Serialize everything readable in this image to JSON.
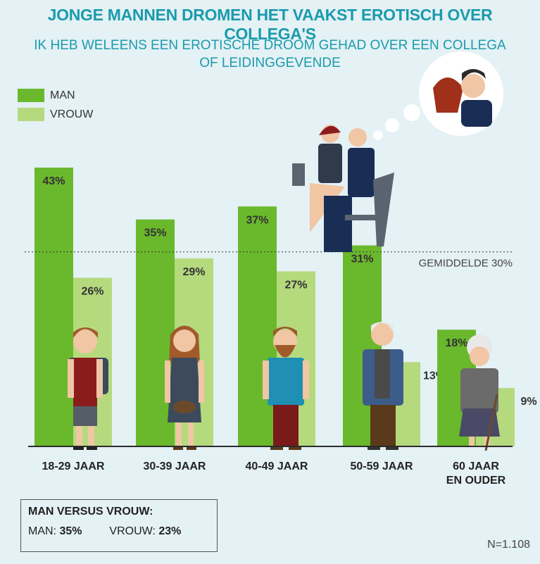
{
  "title": "JONGE MANNEN DROMEN HET VAAKST EROTISCH OVER COLLEGA'S",
  "subtitle_line1": "IK HEB WELEENS EEN EROTISCHE DROOM GEHAD OVER EEN COLLEGA",
  "subtitle_line2": "OF LEIDINGGEVENDE",
  "legend": [
    {
      "label": "MAN",
      "color": "#6ab82c"
    },
    {
      "label": "VROUW",
      "color": "#b5da7e"
    }
  ],
  "summary": {
    "heading": "MAN VERSUS VROUW:",
    "man_label": "MAN:",
    "man_value": "35%",
    "vrouw_label": "VROUW:",
    "vrouw_value": "23%"
  },
  "sample_size": "N=1.108",
  "chart_data": {
    "type": "bar",
    "categories": [
      "18-29 JAAR",
      "30-39 JAAR",
      "40-49 JAAR",
      "50-59 JAAR",
      "60 JAAR\nEN OUDER"
    ],
    "series": [
      {
        "name": "MAN",
        "values": [
          43,
          35,
          37,
          31,
          18
        ],
        "labels": [
          "43%",
          "35%",
          "37%",
          "31%",
          "18%"
        ]
      },
      {
        "name": "VROUW",
        "values": [
          26,
          29,
          27,
          13,
          9
        ],
        "labels": [
          "26%",
          "29%",
          "27%",
          "13%",
          "9%"
        ]
      }
    ],
    "average": {
      "value": 30,
      "label": "GEMIDDELDE 30%"
    },
    "title": "JONGE MANNEN DROMEN HET VAAKST EROTISCH OVER COLLEGA'S",
    "ylim": [
      0,
      43
    ]
  }
}
